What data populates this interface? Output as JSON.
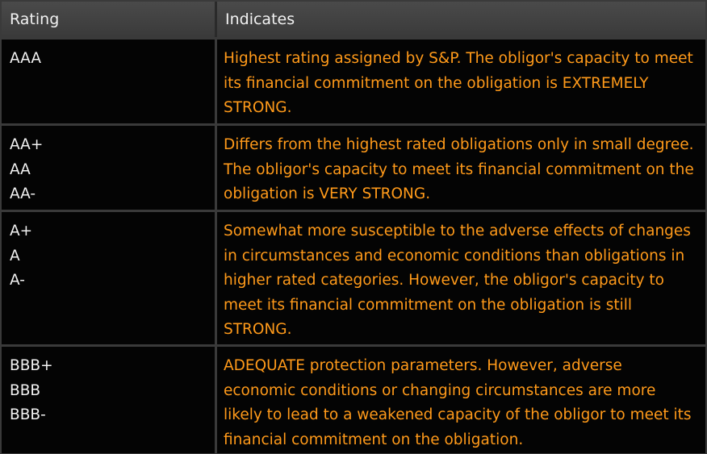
{
  "columns": {
    "rating": "Rating",
    "indicates": "Indicates"
  },
  "rows": [
    {
      "ratings": "AAA",
      "text": "Highest rating assigned by S&P. The obligor's capacity to meet its financial commitment on the obligation is EXTREMELY STRONG."
    },
    {
      "ratings": "AA+\nAA\nAA-",
      "text": "Differs from the highest rated obligations only in small degree. The obligor's capacity to meet its financial commitment on the obligation is VERY STRONG."
    },
    {
      "ratings": "A+\nA\nA-",
      "text": "Somewhat more susceptible to the adverse effects of changes in circumstances and economic conditions than obligations in higher rated categories. However, the obligor's capacity to meet its financial commitment on the obligation is still STRONG."
    },
    {
      "ratings": "BBB+\nBBB\nBBB-",
      "text": "ADEQUATE protection parameters. However, adverse economic conditions or changing circumstances are more likely to lead to a weakened capacity of the obligor to meet its financial commitment on the obligation."
    }
  ],
  "colors": {
    "header_text": "#f2f2f2",
    "rating_text": "#f2f2f2",
    "indicates_text": "#ff9a1a",
    "row_bg": "#040404"
  }
}
